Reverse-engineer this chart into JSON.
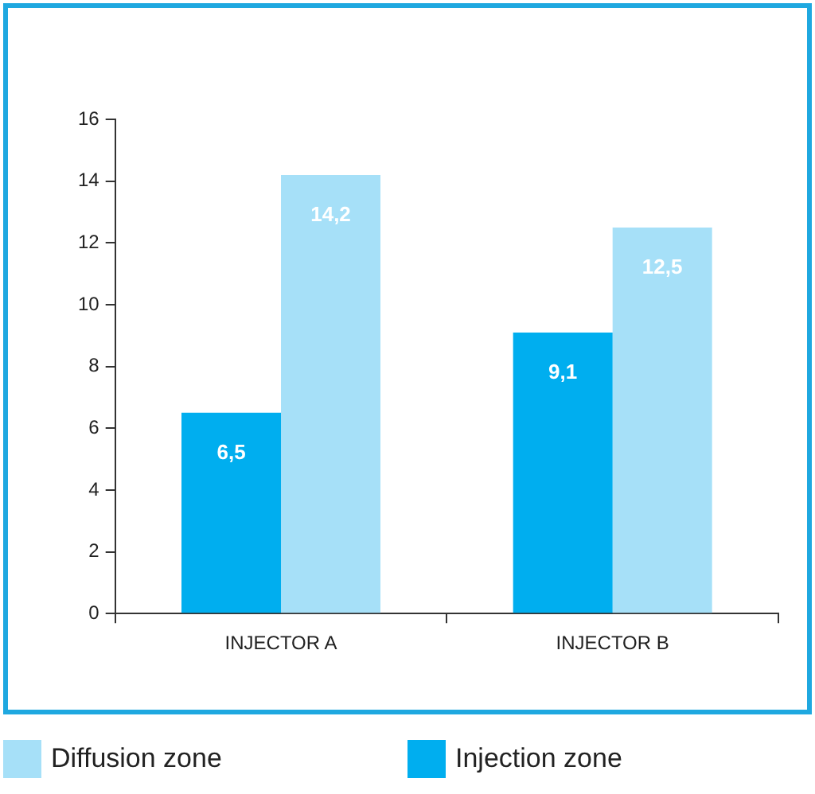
{
  "chart_data": {
    "type": "bar",
    "categories": [
      "INJECTOR A",
      "INJECTOR B"
    ],
    "series": [
      {
        "name": "Injection zone",
        "color": "#00aeef",
        "values": [
          6.5,
          9.1
        ],
        "value_labels": [
          "6,5",
          "9,1"
        ]
      },
      {
        "name": "Diffusion zone",
        "color": "#a6e0f8",
        "values": [
          14.2,
          12.5
        ],
        "value_labels": [
          "14,2",
          "12,5"
        ]
      }
    ],
    "ylim": [
      0,
      16
    ],
    "yticks": [
      0,
      2,
      4,
      6,
      8,
      10,
      12,
      14,
      16
    ],
    "grid": false,
    "legend": "bottom"
  }
}
